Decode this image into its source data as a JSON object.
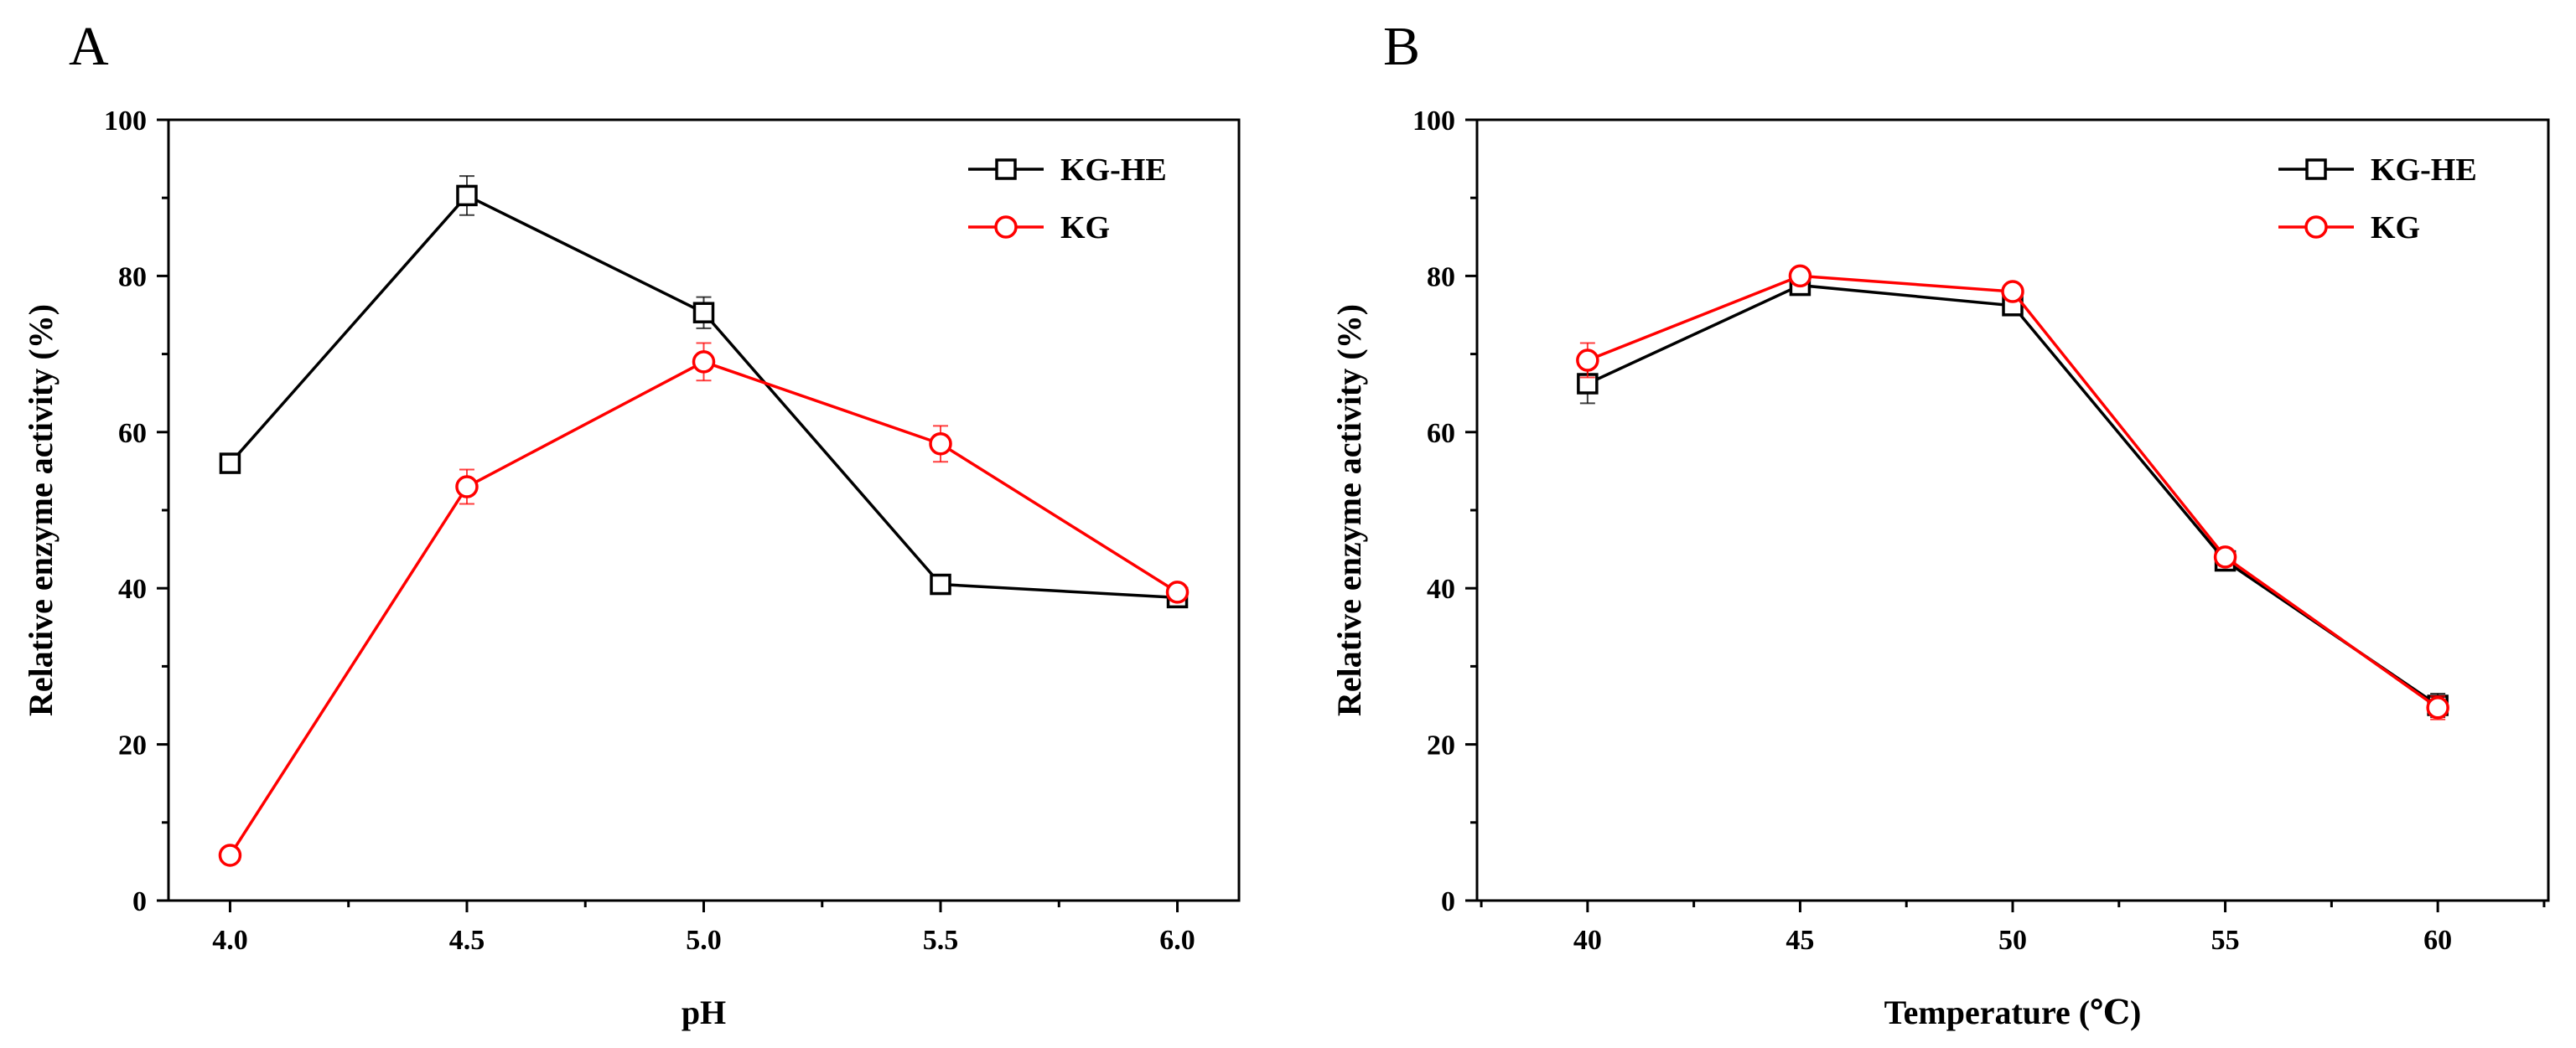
{
  "chart_data": [
    {
      "panel": "A",
      "type": "line",
      "xlabel": "pH",
      "ylabel": "Relative enzyme activity (%)",
      "x": [
        4.0,
        4.5,
        5.0,
        5.5,
        6.0
      ],
      "xticks": [
        "4.0",
        "4.5",
        "5.0",
        "5.5",
        "6.0"
      ],
      "xlim": [
        3.87,
        6.13
      ],
      "ylim": [
        0,
        100
      ],
      "yticks": [
        0,
        20,
        40,
        60,
        80,
        100
      ],
      "legend_position": "top-right",
      "series": [
        {
          "name": "KG-HE",
          "marker": "square",
          "color": "#000000",
          "values": [
            56,
            90.3,
            75.3,
            40.5,
            38.8
          ],
          "errors": [
            0.8,
            2.5,
            2.0,
            1.0,
            1.0
          ]
        },
        {
          "name": "KG",
          "marker": "circle",
          "color": "#ff0000",
          "values": [
            5.8,
            53,
            69,
            58.5,
            39.5
          ],
          "errors": [
            0.8,
            2.2,
            2.4,
            2.3,
            1.0
          ]
        }
      ]
    },
    {
      "panel": "B",
      "type": "line",
      "xlabel": "Temperature (℃)",
      "ylabel": "Relative enzyme activity (%)",
      "x": [
        40,
        45,
        50,
        55,
        60
      ],
      "xticks": [
        "40",
        "45",
        "50",
        "55",
        "60"
      ],
      "xlim": [
        37.4,
        62.6
      ],
      "ylim": [
        0,
        100
      ],
      "yticks": [
        0,
        20,
        40,
        60,
        80,
        100
      ],
      "legend_position": "top-right",
      "series": [
        {
          "name": "KG-HE",
          "marker": "square",
          "color": "#000000",
          "values": [
            66.2,
            78.8,
            76.2,
            43.5,
            25
          ],
          "errors": [
            2.5,
            1.0,
            1.0,
            1.0,
            1.5
          ]
        },
        {
          "name": "KG",
          "marker": "circle",
          "color": "#ff0000",
          "values": [
            69.2,
            80,
            78,
            44,
            24.7
          ],
          "errors": [
            2.2,
            1.0,
            1.0,
            1.0,
            1.5
          ]
        }
      ]
    }
  ]
}
